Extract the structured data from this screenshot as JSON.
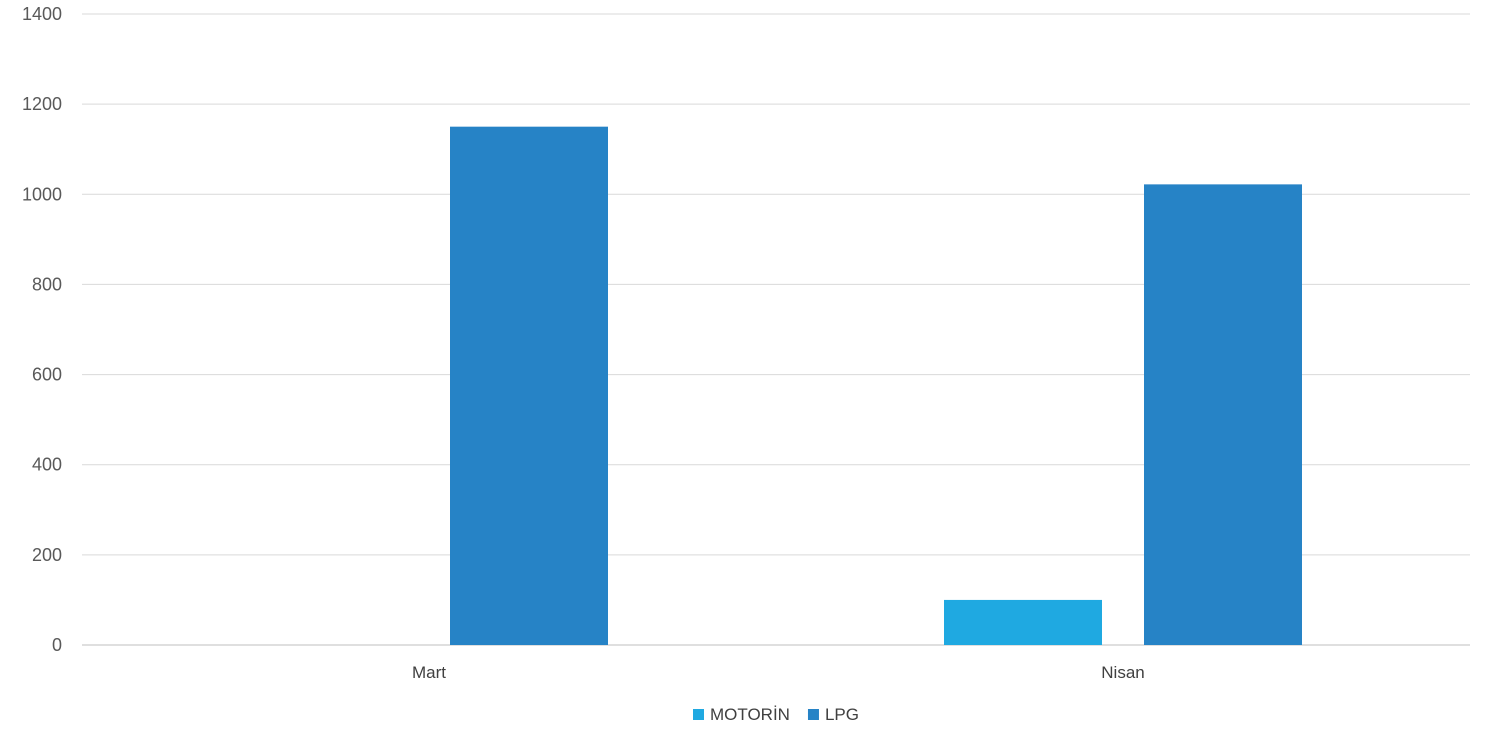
{
  "chart_data": {
    "type": "bar",
    "title": "",
    "xlabel": "",
    "ylabel": "",
    "categories": [
      "Mart",
      "Nisan"
    ],
    "series": [
      {
        "name": "MOTORİN",
        "values": [
          0,
          100
        ],
        "color": "#1fa9e1"
      },
      {
        "name": "LPG",
        "values": [
          1150,
          1022
        ],
        "color": "#2683c6"
      }
    ],
    "ylim": [
      0,
      1400
    ],
    "yticks": [
      0,
      200,
      400,
      600,
      800,
      1000,
      1200,
      1400
    ],
    "grid": true,
    "legend_position": "bottom"
  }
}
